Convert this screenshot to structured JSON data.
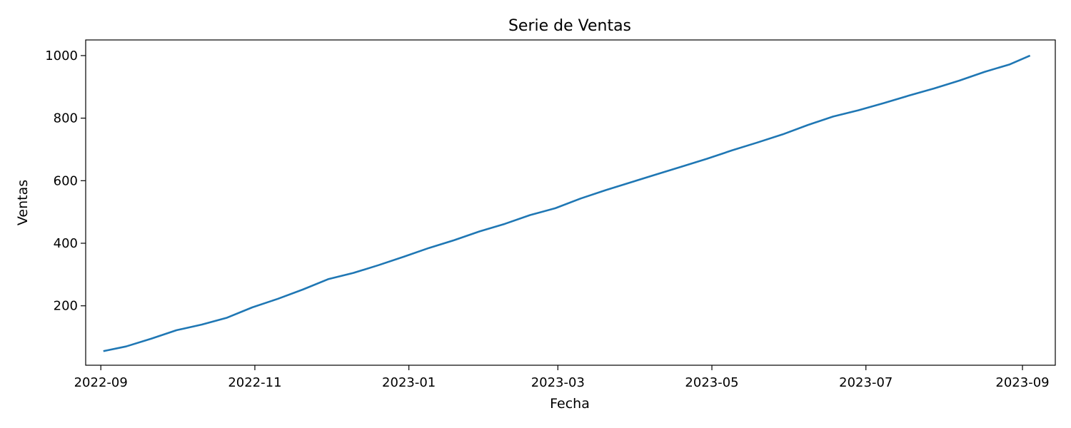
{
  "chart_data": {
    "type": "line",
    "title": "Serie de Ventas",
    "xlabel": "Fecha",
    "ylabel": "Ventas",
    "x_axis_kind": "date",
    "xlim": [
      "2022-08-26",
      "2023-09-14"
    ],
    "ylim": [
      10,
      1050
    ],
    "grid": false,
    "legend": "none",
    "x_ticks": [
      "2022-09-01",
      "2022-11-01",
      "2023-01-01",
      "2023-03-01",
      "2023-05-01",
      "2023-07-01",
      "2023-09-01"
    ],
    "x_tick_labels": [
      "2022-09",
      "2022-11",
      "2023-01",
      "2023-03",
      "2023-05",
      "2023-07",
      "2023-09"
    ],
    "y_ticks": [
      200,
      400,
      600,
      800,
      1000
    ],
    "y_tick_labels": [
      "200",
      "400",
      "600",
      "800",
      "1000"
    ],
    "line_color": "#1f77b4",
    "series": [
      {
        "name": "",
        "x": [
          "2022-09-02",
          "2022-09-11",
          "2022-09-21",
          "2022-10-01",
          "2022-10-11",
          "2022-10-21",
          "2022-10-31",
          "2022-11-10",
          "2022-11-20",
          "2022-11-30",
          "2022-12-10",
          "2022-12-20",
          "2022-12-30",
          "2023-01-09",
          "2023-01-19",
          "2023-01-29",
          "2023-02-08",
          "2023-02-18",
          "2023-02-28",
          "2023-03-10",
          "2023-03-20",
          "2023-03-30",
          "2023-04-09",
          "2023-04-19",
          "2023-04-29",
          "2023-05-09",
          "2023-05-19",
          "2023-05-29",
          "2023-06-08",
          "2023-06-18",
          "2023-06-28",
          "2023-07-08",
          "2023-07-18",
          "2023-07-28",
          "2023-08-07",
          "2023-08-17",
          "2023-08-27",
          "2023-09-04"
        ],
        "values": [
          55,
          70,
          95,
          122,
          140,
          162,
          195,
          222,
          252,
          285,
          305,
          330,
          357,
          385,
          410,
          438,
          462,
          490,
          512,
          543,
          570,
          595,
          620,
          645,
          670,
          697,
          722,
          748,
          778,
          805,
          825,
          848,
          872,
          895,
          920,
          948,
          972,
          1000
        ]
      }
    ]
  }
}
